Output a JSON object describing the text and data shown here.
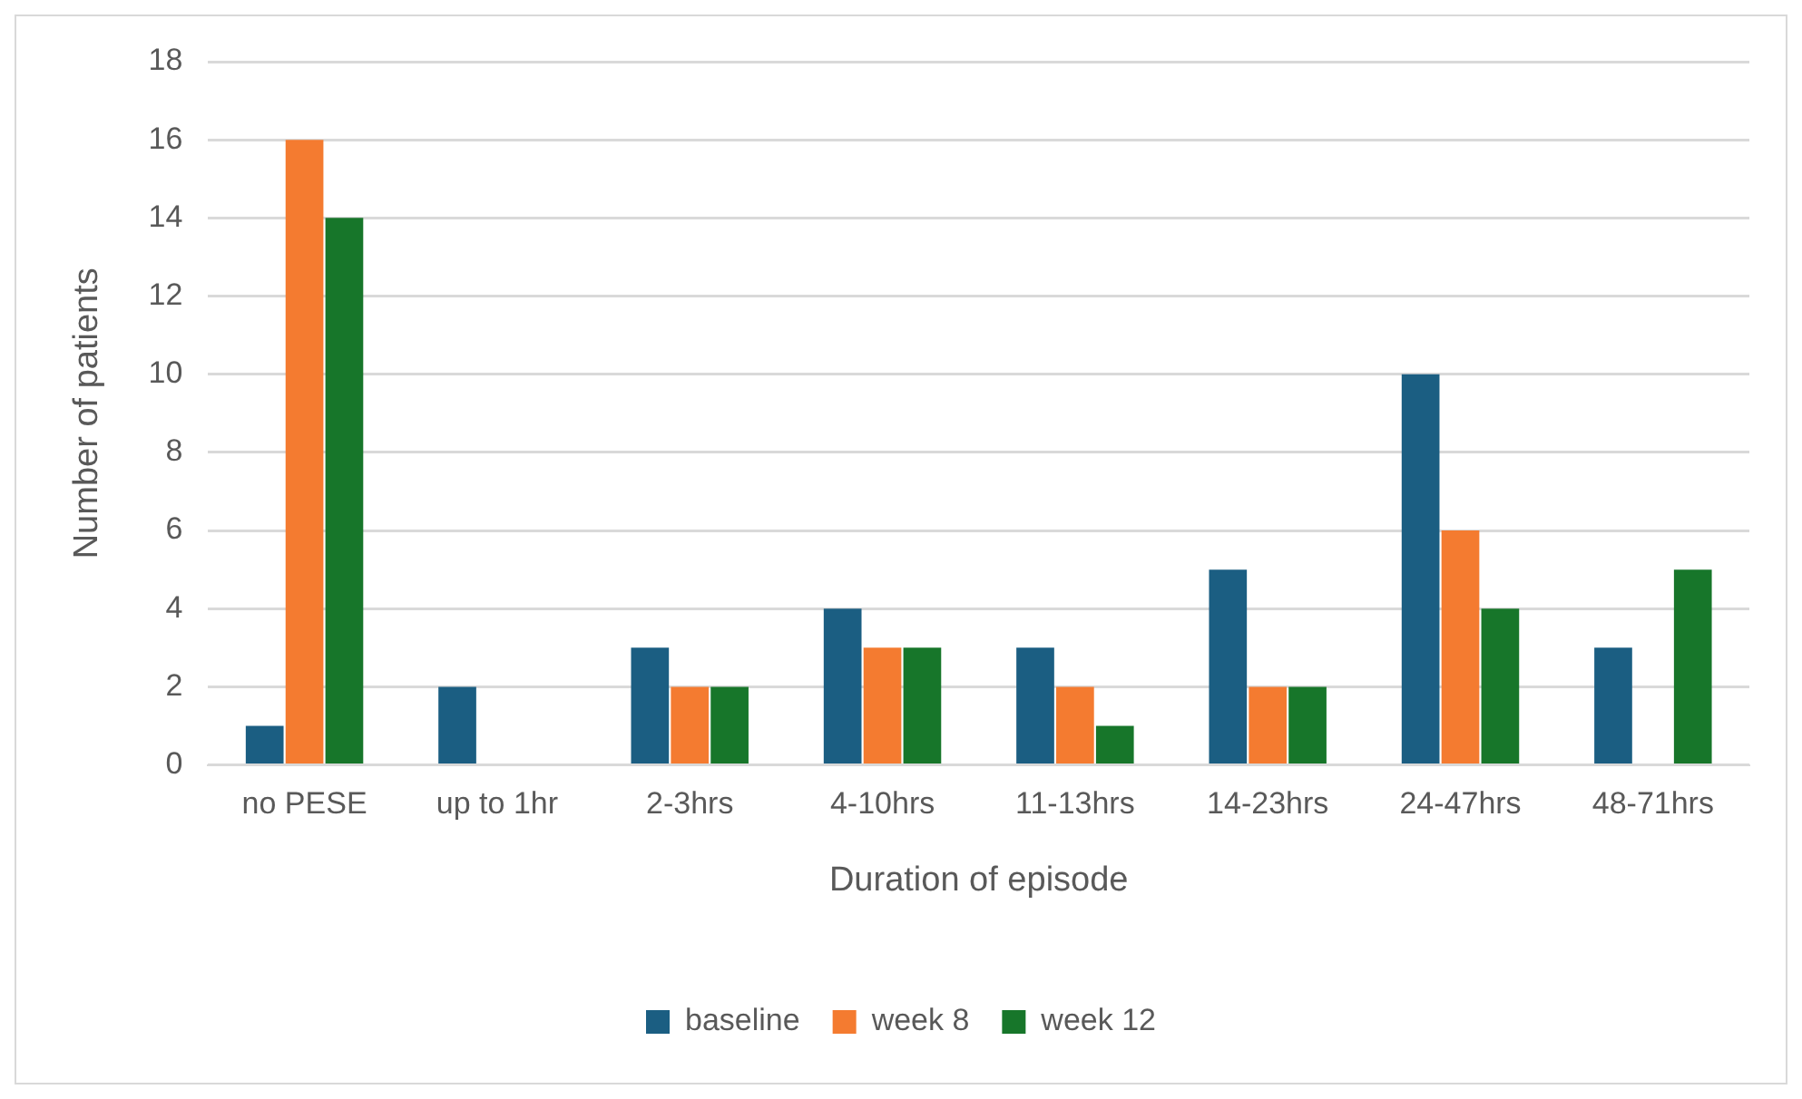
{
  "chart_data": {
    "type": "bar",
    "xlabel": "Duration of episode",
    "ylabel": "Number of patients",
    "categories": [
      "no PESE",
      "up to 1hr",
      "2-3hrs",
      "4-10hrs",
      "11-13hrs",
      "14-23hrs",
      "24-47hrs",
      "48-71hrs"
    ],
    "series": [
      {
        "name": "baseline",
        "color": "#1b5e82",
        "values": [
          1,
          2,
          3,
          4,
          3,
          5,
          10,
          3
        ]
      },
      {
        "name": "week 8",
        "color": "#f47b30",
        "values": [
          16,
          0,
          2,
          3,
          2,
          2,
          6,
          0
        ]
      },
      {
        "name": "week 12",
        "color": "#17762a",
        "values": [
          14,
          0,
          2,
          3,
          1,
          2,
          4,
          5
        ]
      }
    ],
    "ylim": [
      0,
      18
    ],
    "yticks": [
      0,
      2,
      4,
      6,
      8,
      10,
      12,
      14,
      16,
      18
    ],
    "grid": "y",
    "legend": "bottom"
  }
}
